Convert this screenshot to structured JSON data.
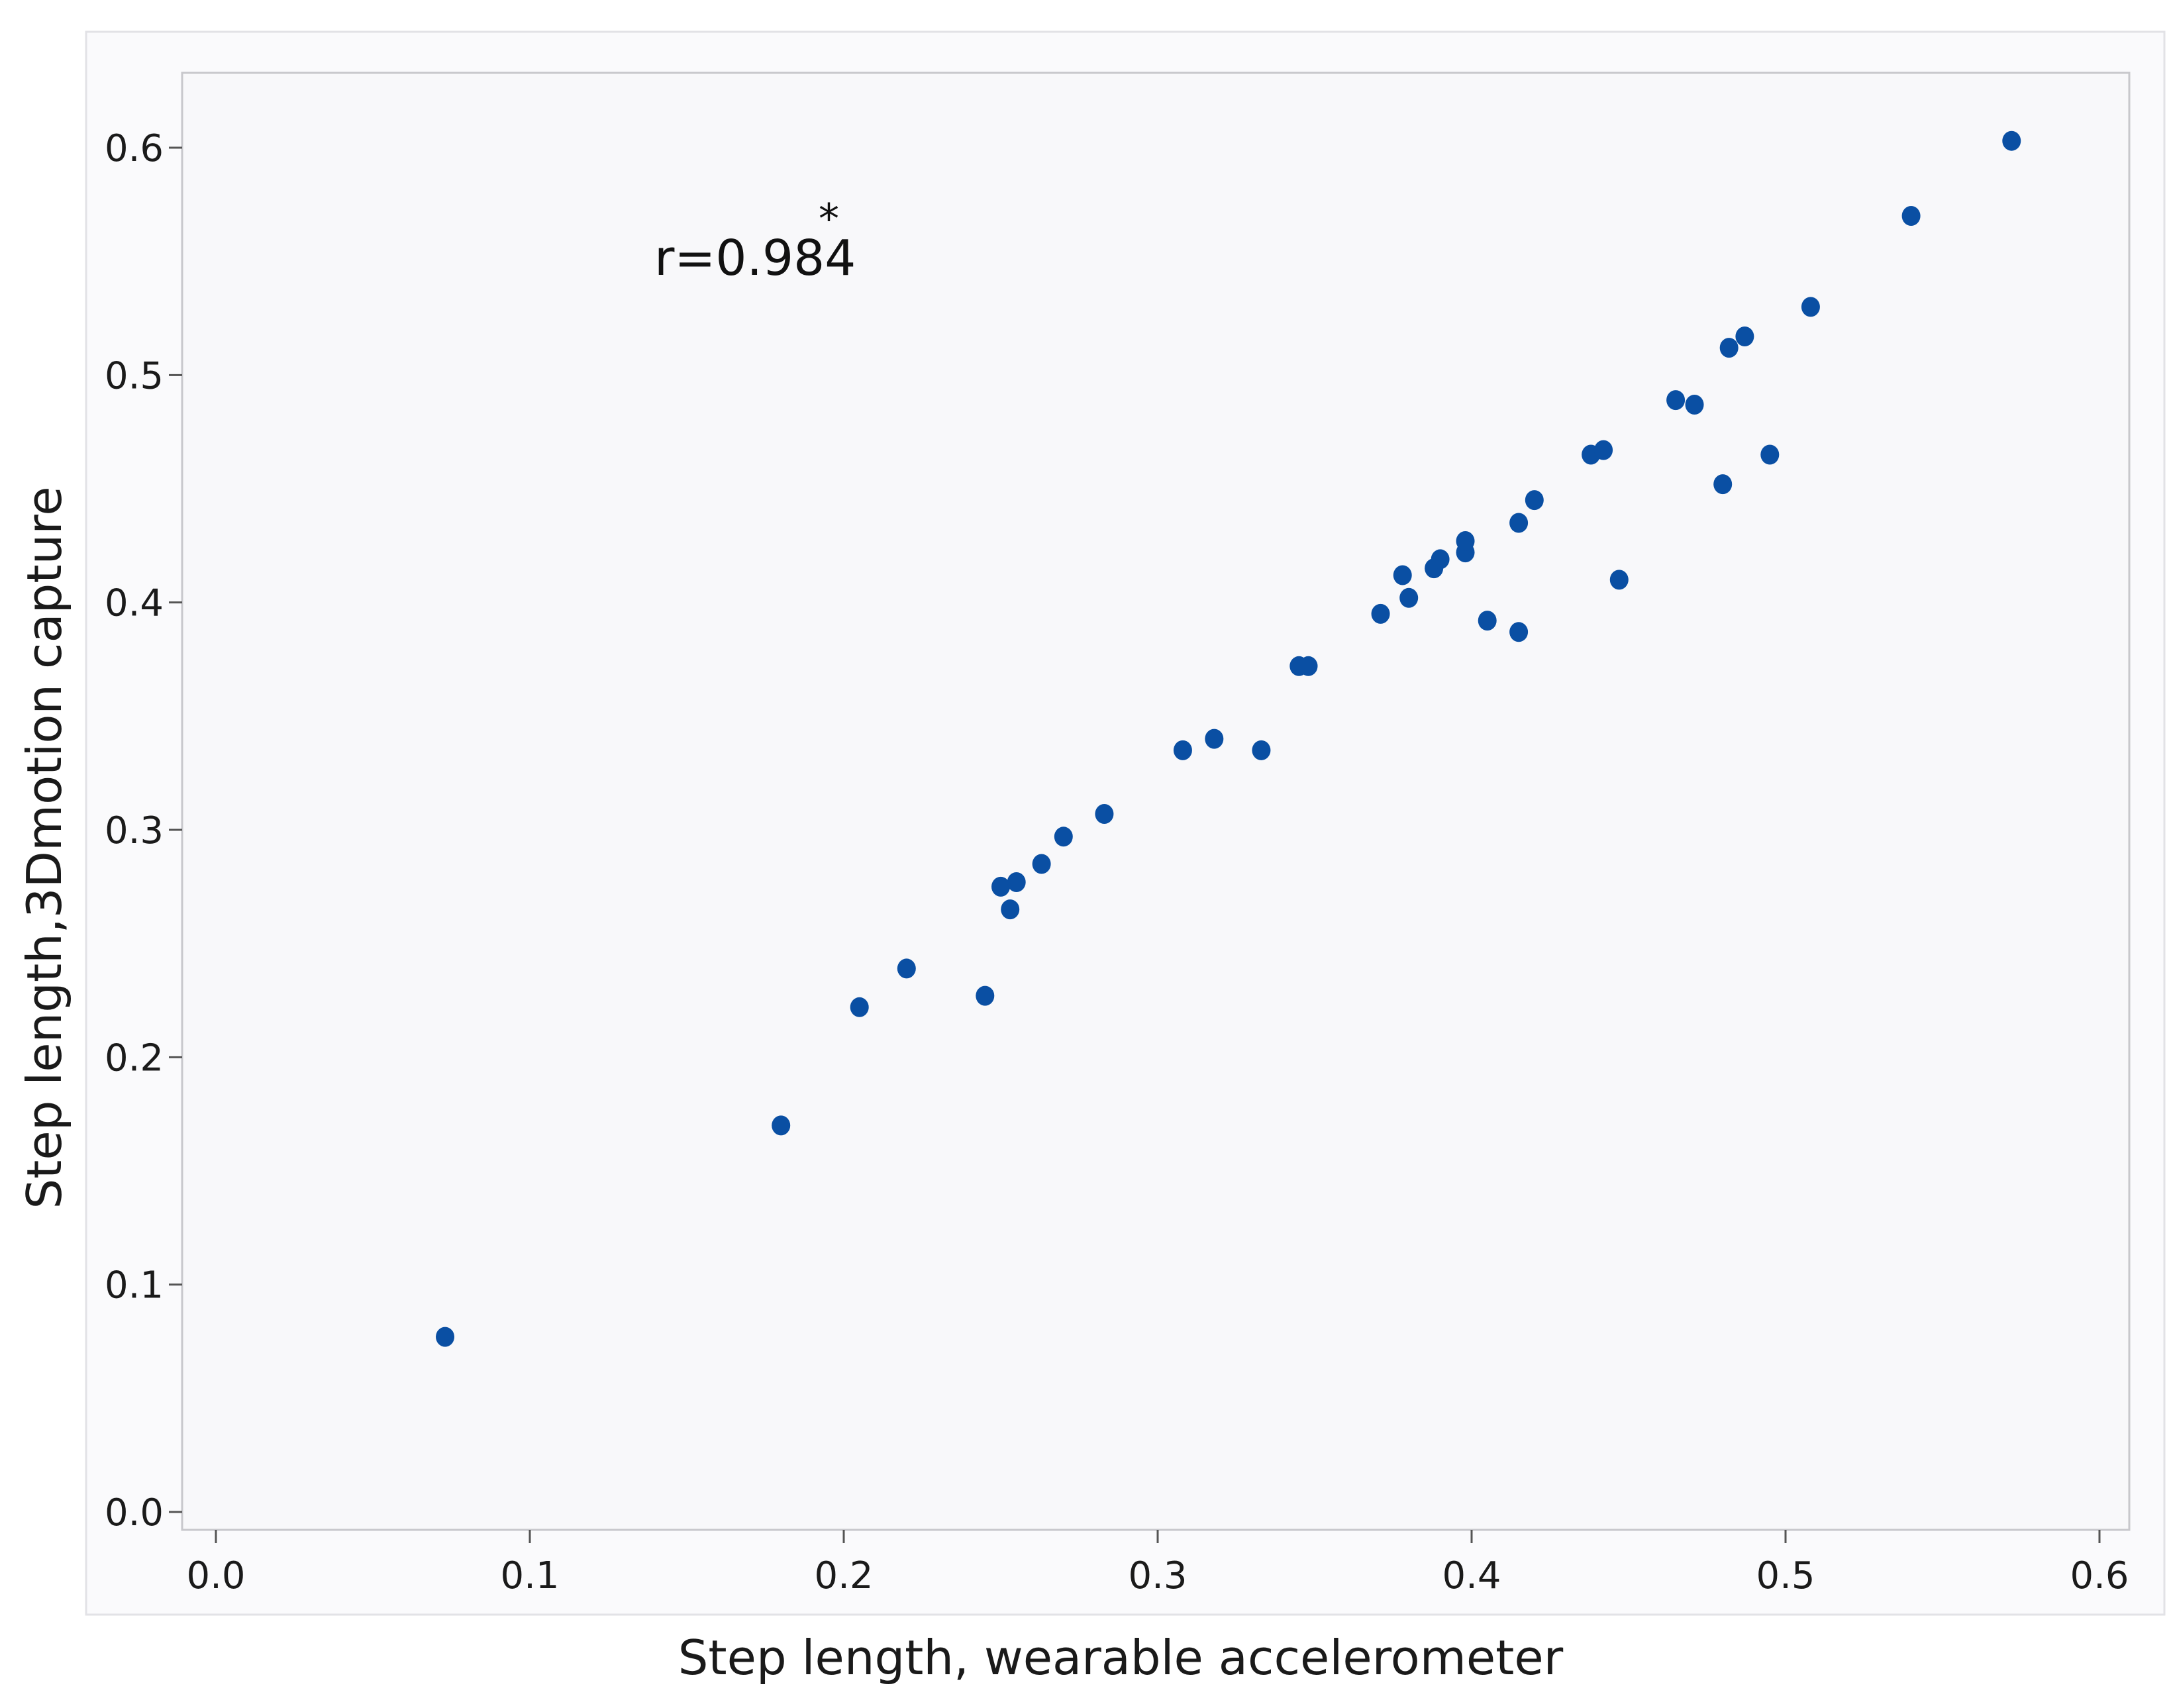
{
  "chart_data": {
    "type": "scatter",
    "title": "",
    "xlabel": "Step length, wearable accelerometer",
    "ylabel": "Step length,3Dmotion capture",
    "xlim": [
      0.0,
      0.6
    ],
    "ylim": [
      0.0,
      0.6
    ],
    "x_ticks": [
      "0.0",
      "0.1",
      "0.2",
      "0.3",
      "0.4",
      "0.5",
      "0.6"
    ],
    "y_ticks": [
      "0.0",
      "0.1",
      "0.2",
      "0.3",
      "0.4",
      "0.5",
      "0.6"
    ],
    "grid": false,
    "legend": "none",
    "marker_color": "#0a4fa3",
    "annotation": {
      "text": "r=0.984",
      "superscript": "*"
    },
    "points": [
      [
        0.073,
        0.077
      ],
      [
        0.18,
        0.17
      ],
      [
        0.205,
        0.222
      ],
      [
        0.22,
        0.239
      ],
      [
        0.245,
        0.227
      ],
      [
        0.25,
        0.275
      ],
      [
        0.253,
        0.265
      ],
      [
        0.255,
        0.277
      ],
      [
        0.263,
        0.285
      ],
      [
        0.27,
        0.297
      ],
      [
        0.283,
        0.307
      ],
      [
        0.308,
        0.335
      ],
      [
        0.318,
        0.34
      ],
      [
        0.333,
        0.335
      ],
      [
        0.345,
        0.372
      ],
      [
        0.348,
        0.372
      ],
      [
        0.371,
        0.395
      ],
      [
        0.378,
        0.412
      ],
      [
        0.38,
        0.402
      ],
      [
        0.388,
        0.415
      ],
      [
        0.39,
        0.419
      ],
      [
        0.398,
        0.422
      ],
      [
        0.398,
        0.427
      ],
      [
        0.405,
        0.392
      ],
      [
        0.415,
        0.387
      ],
      [
        0.415,
        0.435
      ],
      [
        0.42,
        0.445
      ],
      [
        0.438,
        0.465
      ],
      [
        0.442,
        0.467
      ],
      [
        0.447,
        0.41
      ],
      [
        0.465,
        0.489
      ],
      [
        0.471,
        0.487
      ],
      [
        0.48,
        0.452
      ],
      [
        0.482,
        0.512
      ],
      [
        0.487,
        0.517
      ],
      [
        0.495,
        0.465
      ],
      [
        0.508,
        0.53
      ],
      [
        0.54,
        0.57
      ],
      [
        0.572,
        0.603
      ]
    ]
  }
}
